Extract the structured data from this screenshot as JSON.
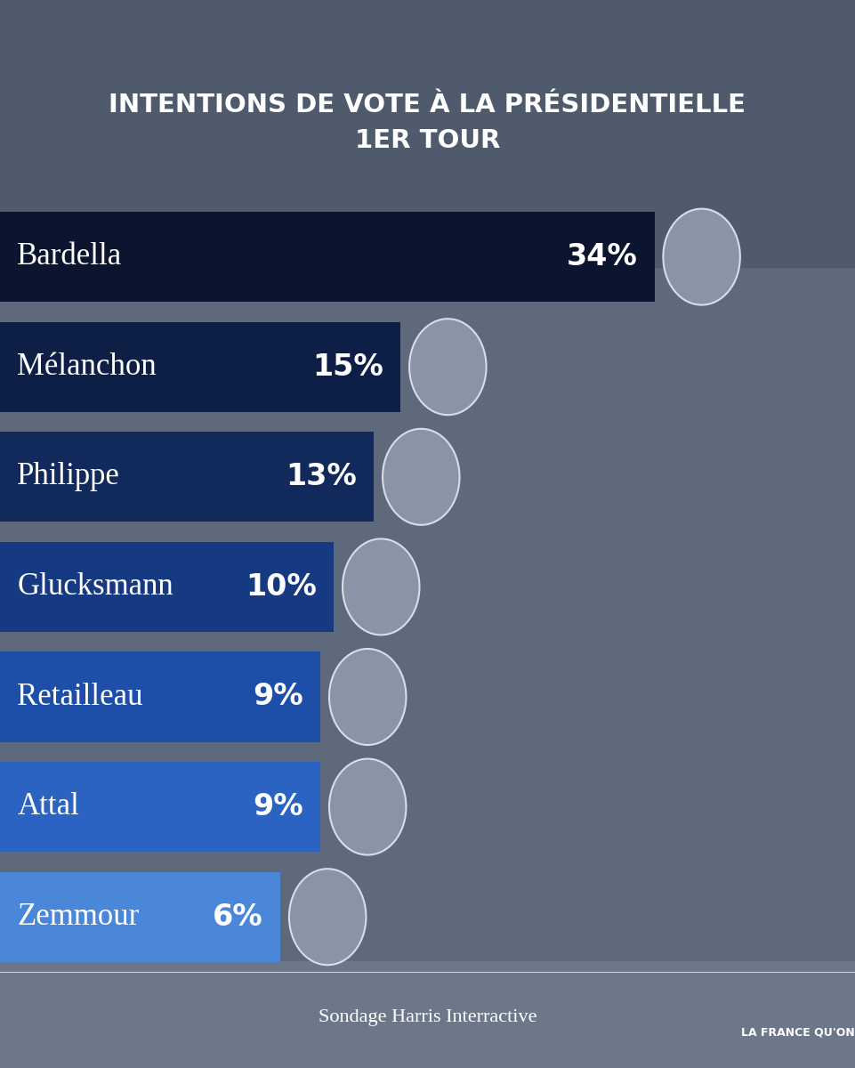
{
  "chart_data": {
    "type": "bar",
    "orientation": "horizontal",
    "title": "INTENTIONS DE VOTE À LA PRÉSIDENTIELLE\n1ER TOUR",
    "categories": [
      "Bardella",
      "Mélanchon",
      "Philippe",
      "Glucksmann",
      "Retailleau",
      "Attal",
      "Zemmour"
    ],
    "values": [
      34,
      15,
      13,
      10,
      9,
      9,
      6
    ],
    "value_labels": [
      "34%",
      "15%",
      "13%",
      "10%",
      "9%",
      "9%",
      "6%"
    ],
    "colors": [
      "#0b1530",
      "#0e1f47",
      "#12295c",
      "#163a82",
      "#1d4ea8",
      "#2a63c2",
      "#4a87d8"
    ],
    "xlim": [
      -15,
      49
    ],
    "data_labels": true,
    "tick_labels": false,
    "grid": false,
    "source": "Sondage Harris Interractive",
    "logo": "LA FRANCE QU'ON"
  }
}
